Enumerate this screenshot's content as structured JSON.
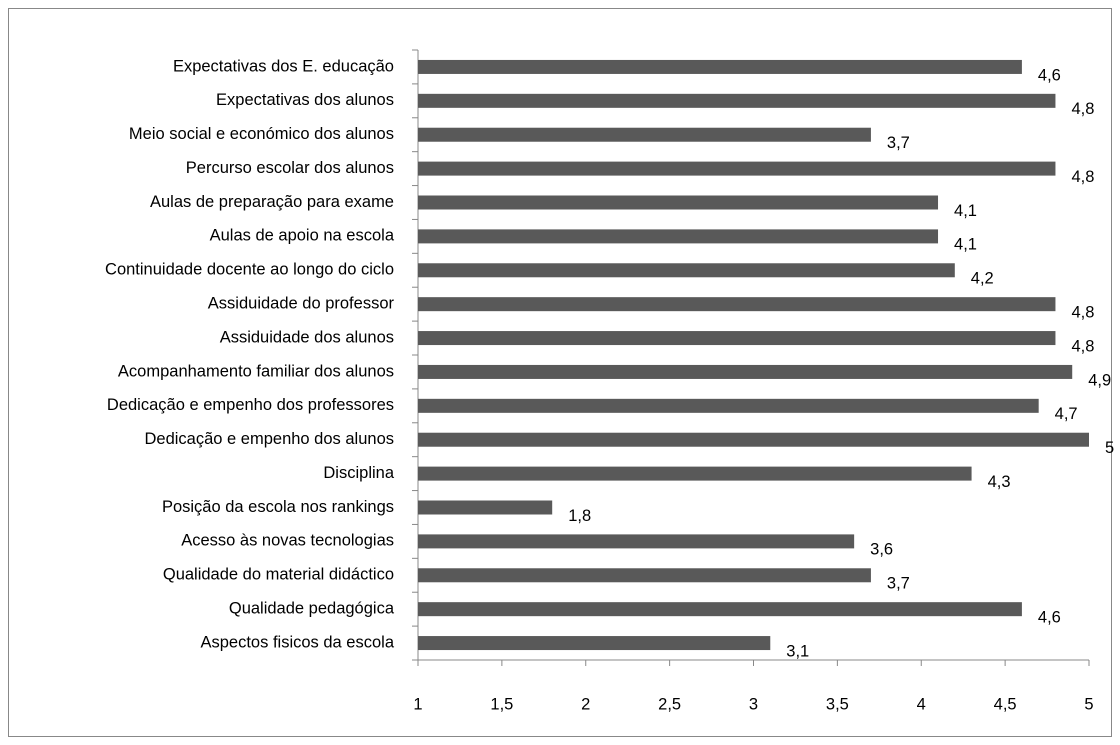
{
  "chart_data": {
    "type": "bar",
    "orientation": "horizontal",
    "color": "#595959",
    "categories": [
      "Expectativas dos E. educação",
      "Expectativas dos alunos",
      "Meio social e económico dos alunos",
      "Percurso escolar dos alunos",
      "Aulas de preparação para exame",
      "Aulas de apoio na escola",
      "Continuidade docente ao longo do ciclo",
      "Assiduidade do professor",
      "Assiduidade dos alunos",
      "Acompanhamento familiar dos alunos",
      "Dedicação e empenho dos professores",
      "Dedicação e empenho dos alunos",
      "Disciplina",
      "Posição da escola nos rankings",
      "Acesso às novas tecnologias",
      "Qualidade do material didáctico",
      "Qualidade pedagógica",
      "Aspectos fisicos da escola"
    ],
    "values": [
      4.6,
      4.8,
      3.7,
      4.8,
      4.1,
      4.1,
      4.2,
      4.8,
      4.8,
      4.9,
      4.7,
      5,
      4.3,
      1.8,
      3.6,
      3.7,
      4.6,
      3.1
    ],
    "value_labels": [
      "4,6",
      "4,8",
      "3,7",
      "4,8",
      "4,1",
      "4,1",
      "4,2",
      "4,8",
      "4,8",
      "4,9",
      "4,7",
      "5",
      "4,3",
      "1,8",
      "3,6",
      "3,7",
      "4,6",
      "3,1"
    ],
    "xlim": [
      1,
      5
    ],
    "xticks": [
      1,
      {
        "value": 1.5,
        "label": "1,5"
      },
      2,
      {
        "value": 2.5,
        "label": "2,5"
      },
      3,
      {
        "value": 3.5,
        "label": "3,5"
      },
      4,
      {
        "value": 4.5,
        "label": "4,5"
      },
      5
    ]
  }
}
